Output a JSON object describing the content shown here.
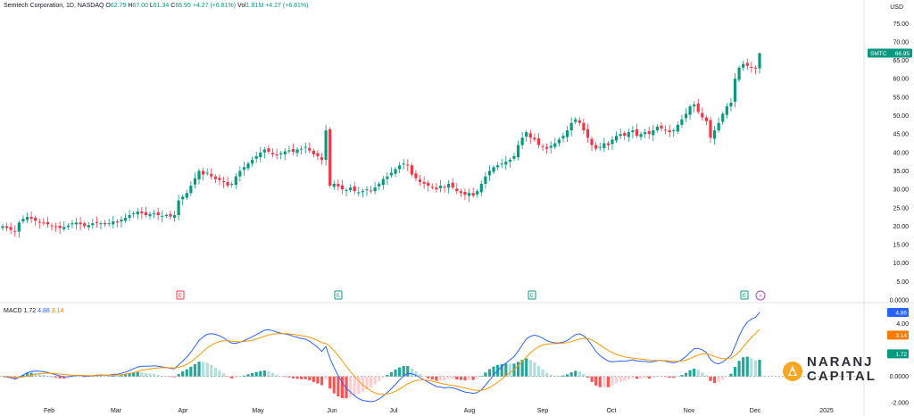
{
  "header": {
    "title": "Semtech Corporation, 1D, NASDAQ",
    "o_label": "O",
    "o_value": "62.79",
    "h_label": "H",
    "h_value": "67.00",
    "l_label": "L",
    "l_value": "61.34",
    "c_label": "C",
    "c_value": "66.95",
    "change": "+4.27 (+6.81%)",
    "vol_label": "Vol",
    "vol_value": "1.81M",
    "vol_change": "+4.27 (+6.81%)"
  },
  "macd": {
    "label": "MACD",
    "v1": "1.72",
    "v2": "4.86",
    "v3": "3.14"
  },
  "currency": "USD",
  "price_tag": {
    "symbol": "SMTC",
    "value": "66.95"
  },
  "macd_tags": {
    "macd": "4.86",
    "signal": "3.14",
    "hist": "1.72"
  },
  "logo": {
    "line1": "NARANJ",
    "line2": "CAPITAL"
  },
  "colors": {
    "up": "#089981",
    "down": "#f23645",
    "macd": "#2962ff",
    "signal": "#ff9800",
    "hist_up": "#26a69a",
    "hist_up_light": "#b2dfdb",
    "hist_dn": "#ff5252",
    "hist_dn_light": "#ffcdd2",
    "brand": "#f5a623"
  },
  "chart_data": [
    {
      "type": "candlestick",
      "title": "Semtech Corporation, 1D, NASDAQ",
      "ylabel": "USD",
      "y_ticks": [
        "75.00",
        "70.00",
        "65.00",
        "60.00",
        "55.00",
        "50.00",
        "45.00",
        "40.00",
        "35.00",
        "30.00",
        "25.00",
        "20.00",
        "15.00",
        "10.00",
        "5.00",
        "0.0000"
      ],
      "x_ticks": [
        "Feb",
        "Mar",
        "Apr",
        "May",
        "Jun",
        "Jul",
        "Aug",
        "Sep",
        "Oct",
        "Nov",
        "Dec",
        "2025"
      ],
      "ylim": [
        0,
        75
      ],
      "close_series": [
        20,
        19.5,
        19,
        18.5,
        21,
        22,
        22.5,
        22,
        21.5,
        21,
        20.8,
        20.5,
        20,
        19.8,
        19.5,
        19.8,
        20.2,
        20.8,
        21,
        20.5,
        20,
        20.3,
        20.8,
        21,
        20.8,
        20.5,
        20.8,
        21.3,
        21,
        21.8,
        22.3,
        23,
        23.5,
        24,
        23.5,
        23,
        23.3,
        23.5,
        23,
        22.8,
        23,
        22.6,
        23,
        27,
        28,
        29,
        31,
        33,
        35,
        34,
        34.5,
        33.5,
        32.8,
        32.5,
        32,
        31,
        31.5,
        33.5,
        35,
        36,
        37,
        38,
        39,
        40,
        40.8,
        40.2,
        39.5,
        39.2,
        39.8,
        40.3,
        40.6,
        40.2,
        40.8,
        41,
        41.5,
        40.5,
        39.5,
        39,
        38,
        46,
        31,
        31.5,
        30.8,
        30,
        29.8,
        30.5,
        29.5,
        29.2,
        29.5,
        30,
        29.5,
        30.5,
        31.5,
        32.8,
        33.5,
        34.5,
        35.5,
        36.5,
        37,
        36.5,
        34,
        33,
        32,
        31.5,
        31,
        30.5,
        30,
        31,
        30.5,
        31.5,
        30.5,
        29.5,
        29,
        28.5,
        29,
        28.3,
        29.5,
        31.5,
        33.5,
        35,
        36,
        36.5,
        37,
        37.5,
        38,
        39,
        42,
        44,
        45.5,
        44,
        43.5,
        42,
        41.5,
        41,
        41.8,
        42.5,
        43.5,
        44.5,
        46,
        48,
        49,
        48,
        46,
        44,
        42,
        41,
        41.5,
        42.5,
        42,
        43.5,
        44.5,
        45,
        44.5,
        45.5,
        46,
        44.5,
        45,
        45.5,
        45,
        46,
        47,
        46.5,
        46,
        45.5,
        46,
        47.5,
        49,
        50.5,
        52.5,
        53,
        51,
        49.5,
        48.5,
        44,
        46,
        48,
        50.5,
        52.5,
        53.5,
        60,
        63,
        64,
        63.5,
        63,
        62.8,
        66.95
      ],
      "last": {
        "open": 62.79,
        "high": 67.0,
        "low": 61.34,
        "close": 66.95
      },
      "earnings_markers": [
        "E",
        "E",
        "E",
        "E"
      ],
      "dividend_marker": "⚡"
    },
    {
      "type": "macd",
      "series": [
        {
          "name": "MACD",
          "last": 4.86
        },
        {
          "name": "Signal",
          "last": 3.14
        },
        {
          "name": "Histogram",
          "last": 1.72
        }
      ],
      "y_ticks": [
        "4.00",
        "0.0000",
        "-2.000"
      ],
      "ylim": [
        -2.8,
        5.2
      ]
    }
  ]
}
